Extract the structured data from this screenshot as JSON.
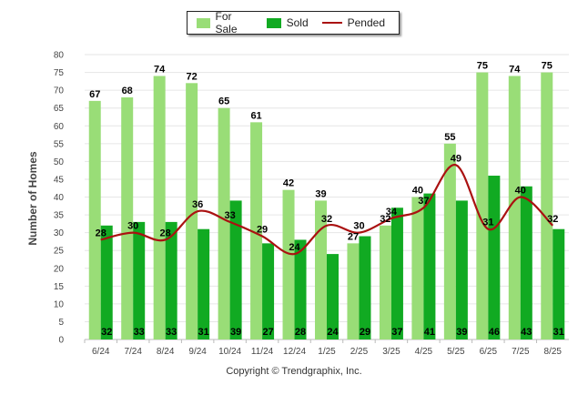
{
  "chart_data": {
    "type": "bar",
    "title": "",
    "xlabel": "",
    "ylabel": "Number of Homes",
    "ylim": [
      0,
      80
    ],
    "yticks": [
      0,
      5,
      10,
      15,
      20,
      25,
      30,
      35,
      40,
      45,
      50,
      55,
      60,
      65,
      70,
      75,
      80
    ],
    "grid": true,
    "legend_position": "top",
    "categories": [
      "6/24",
      "7/24",
      "8/24",
      "9/24",
      "10/24",
      "11/24",
      "12/24",
      "1/25",
      "2/25",
      "3/25",
      "4/25",
      "5/25",
      "6/25",
      "7/25",
      "8/25"
    ],
    "series": [
      {
        "name": "For Sale",
        "kind": "bar",
        "color": "#99dd77",
        "values": [
          67,
          68,
          74,
          72,
          65,
          61,
          42,
          39,
          27,
          32,
          40,
          55,
          75,
          74,
          75
        ]
      },
      {
        "name": "Sold",
        "kind": "bar",
        "color": "#11aa22",
        "values": [
          32,
          33,
          33,
          31,
          39,
          27,
          28,
          24,
          29,
          37,
          41,
          39,
          46,
          43,
          31
        ]
      },
      {
        "name": "Pended",
        "kind": "line",
        "color": "#aa1111",
        "values": [
          28,
          30,
          28,
          36,
          33,
          29,
          24,
          32,
          30,
          34,
          37,
          49,
          31,
          40,
          32
        ]
      }
    ],
    "credit": "Copyright © Trendgraphix, Inc."
  }
}
